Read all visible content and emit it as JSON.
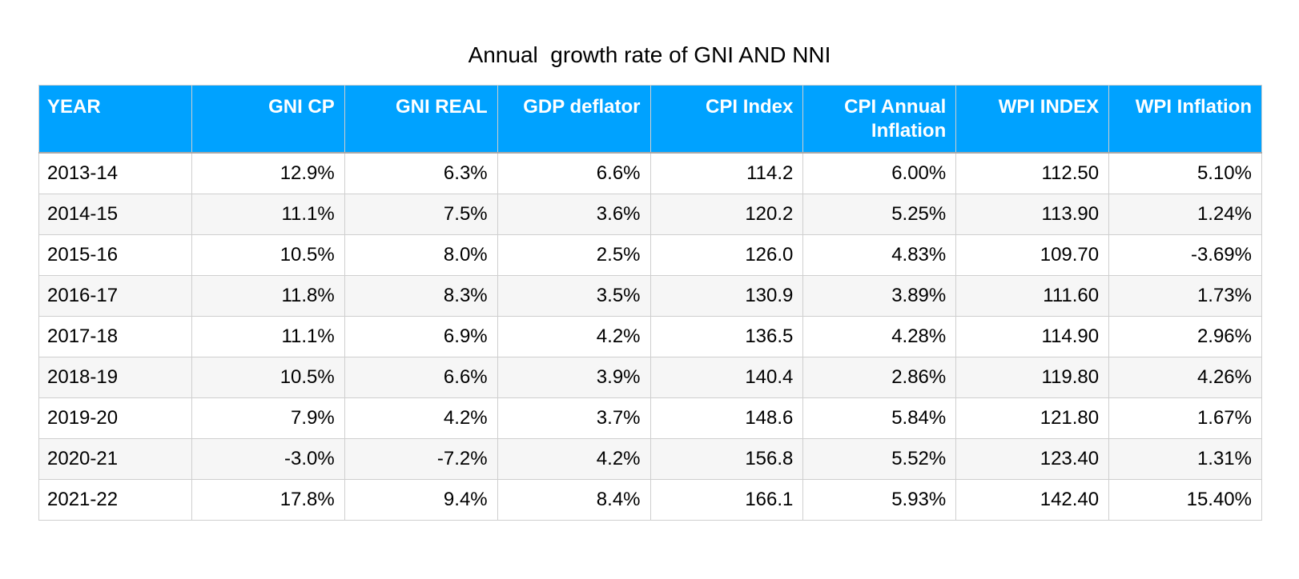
{
  "chart_data": {
    "type": "table",
    "title": "Annual  growth rate of GNI AND NNI",
    "columns": [
      "YEAR",
      "GNI CP",
      "GNI REAL",
      "GDP deflator",
      "CPI  Index",
      "CPI  Annual Inflation",
      "WPI INDEX",
      "WPI Inflation"
    ],
    "rows": [
      [
        "2013-14",
        "12.9%",
        "6.3%",
        "6.6%",
        "114.2",
        "6.00%",
        "112.50",
        "5.10%"
      ],
      [
        "2014-15",
        "11.1%",
        "7.5%",
        "3.6%",
        "120.2",
        "5.25%",
        "113.90",
        "1.24%"
      ],
      [
        "2015-16",
        "10.5%",
        "8.0%",
        "2.5%",
        "126.0",
        "4.83%",
        "109.70",
        "-3.69%"
      ],
      [
        "2016-17",
        "11.8%",
        "8.3%",
        "3.5%",
        "130.9",
        "3.89%",
        "111.60",
        "1.73%"
      ],
      [
        "2017-18",
        "11.1%",
        "6.9%",
        "4.2%",
        "136.5",
        "4.28%",
        "114.90",
        "2.96%"
      ],
      [
        "2018-19",
        "10.5%",
        "6.6%",
        "3.9%",
        "140.4",
        "2.86%",
        "119.80",
        "4.26%"
      ],
      [
        "2019-20",
        "7.9%",
        "4.2%",
        "3.7%",
        "148.6",
        "5.84%",
        "121.80",
        "1.67%"
      ],
      [
        "2020-21",
        "-3.0%",
        "-7.2%",
        "4.2%",
        "156.8",
        "5.52%",
        "123.40",
        "1.31%"
      ],
      [
        "2021-22",
        "17.8%",
        "9.4%",
        "8.4%",
        "166.1",
        "5.93%",
        "142.40",
        "15.40%"
      ]
    ],
    "header_color": "#00a2ff",
    "header_text_color": "#ffffff",
    "alternate_row_color": "#f6f6f6"
  }
}
